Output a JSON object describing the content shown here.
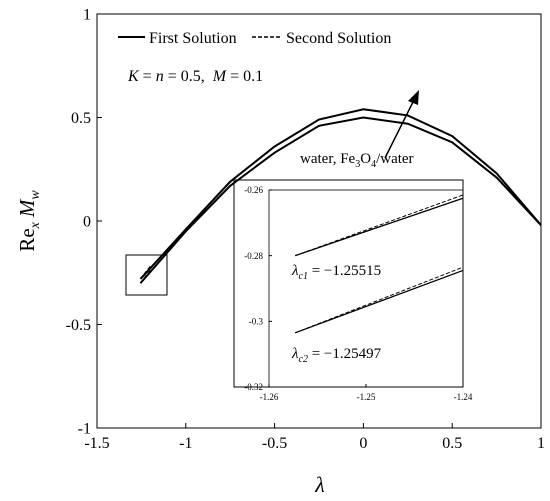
{
  "chart_data": [
    {
      "type": "line",
      "xlabel": "λ",
      "ylabel": [
        "Re",
        "x",
        "M",
        "w"
      ],
      "legend": [
        {
          "name": "First Solution",
          "dash": false
        },
        {
          "name": "Second Solution",
          "dash": true
        }
      ],
      "condition": [
        "K",
        " = ",
        "n",
        " = 0.5, ",
        "M",
        " = 0.1"
      ],
      "arrow_label": [
        "water, Fe",
        "3",
        "O",
        "4",
        "/water"
      ],
      "xlim": [
        -1.5,
        1
      ],
      "xticks": [
        -1.5,
        -1,
        -0.5,
        0,
        0.5,
        1
      ],
      "ylim": [
        -1,
        1
      ],
      "yticks": [
        -1,
        -0.5,
        0,
        0.5,
        1
      ],
      "series": [
        {
          "color": "#000",
          "dash": false,
          "x": [
            -1.255,
            -1,
            -0.75,
            -0.5,
            -0.25,
            0,
            0.25,
            0.5,
            0.75,
            1
          ],
          "values": [
            -0.3,
            -0.05,
            0.17,
            0.33,
            0.46,
            0.5,
            0.47,
            0.38,
            0.21,
            -0.02
          ]
        },
        {
          "color": "#000",
          "dash": false,
          "x": [
            -1.255,
            -1,
            -0.75,
            -0.5,
            -0.25,
            0,
            0.25,
            0.5,
            0.75,
            1
          ],
          "values": [
            -0.28,
            -0.04,
            0.19,
            0.36,
            0.49,
            0.54,
            0.51,
            0.41,
            0.23,
            -0.02
          ]
        },
        {
          "color": "#000",
          "dash": true,
          "x": [
            -1.255,
            -1.2
          ],
          "values": [
            -0.3,
            -0.24
          ]
        },
        {
          "color": "#000",
          "dash": true,
          "x": [
            -1.255,
            -1.2
          ],
          "values": [
            -0.28,
            -0.22
          ]
        }
      ]
    },
    {
      "type": "line",
      "xlim": [
        -1.26,
        -1.24
      ],
      "xticks": [
        -1.26,
        -1.25,
        -1.24
      ],
      "ylim": [
        -0.32,
        -0.26
      ],
      "yticks": [
        -0.32,
        -0.3,
        -0.28,
        -0.26
      ],
      "critical": [
        {
          "symbol": "λ",
          "sub": "c1",
          "text": " = −1.25515"
        },
        {
          "symbol": "λ",
          "sub": "c2",
          "text": " = −1.25497"
        }
      ],
      "series": [
        {
          "color": "#000",
          "dash": false,
          "x": [
            -1.2573,
            -1.24
          ],
          "values": [
            -0.28,
            -0.2625
          ]
        },
        {
          "color": "#000",
          "dash": true,
          "x": [
            -1.2573,
            -1.24
          ],
          "values": [
            -0.28,
            -0.2615
          ]
        },
        {
          "color": "#000",
          "dash": false,
          "x": [
            -1.2573,
            -1.24
          ],
          "values": [
            -0.3035,
            -0.2845
          ]
        },
        {
          "color": "#000",
          "dash": true,
          "x": [
            -1.2573,
            -1.24
          ],
          "values": [
            -0.3035,
            -0.2835
          ]
        }
      ]
    }
  ]
}
